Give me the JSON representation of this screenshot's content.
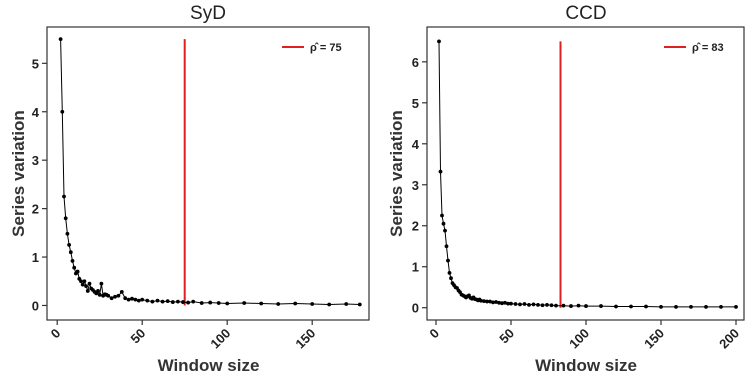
{
  "chart_data": [
    {
      "type": "line",
      "title": "SyD",
      "xlabel": "Window size",
      "ylabel": "Series variation",
      "xlim": [
        -6,
        184
      ],
      "ylim": [
        -0.3,
        5.75
      ],
      "xticks": [
        0,
        50,
        100,
        150
      ],
      "yticks": [
        0,
        1,
        2,
        3,
        4,
        5
      ],
      "grid": false,
      "legend_position": "top-right",
      "vline": {
        "x": 75,
        "ymin": 0,
        "ymax": 5.5,
        "color": "#e02020",
        "label": "ρ̂ = 75"
      },
      "series": [
        {
          "color": "#000000",
          "x": [
            2,
            3,
            4,
            5,
            6,
            7,
            8,
            9,
            10,
            11,
            12,
            13,
            14,
            15,
            16,
            17,
            18,
            19,
            20,
            21,
            22,
            23,
            24,
            25,
            26,
            27,
            28,
            29,
            30,
            32,
            34,
            36,
            38,
            40,
            42,
            44,
            46,
            48,
            50,
            53,
            56,
            59,
            62,
            65,
            68,
            71,
            74,
            77,
            80,
            85,
            90,
            95,
            100,
            110,
            120,
            130,
            140,
            150,
            160,
            170,
            178
          ],
          "y": [
            5.5,
            4.0,
            2.25,
            1.8,
            1.48,
            1.25,
            1.1,
            0.92,
            0.78,
            0.66,
            0.7,
            0.55,
            0.5,
            0.43,
            0.5,
            0.4,
            0.3,
            0.45,
            0.35,
            0.32,
            0.28,
            0.25,
            0.3,
            0.22,
            0.45,
            0.2,
            0.23,
            0.22,
            0.2,
            0.15,
            0.18,
            0.2,
            0.28,
            0.15,
            0.12,
            0.14,
            0.12,
            0.1,
            0.12,
            0.1,
            0.08,
            0.1,
            0.08,
            0.09,
            0.07,
            0.08,
            0.07,
            0.06,
            0.08,
            0.05,
            0.06,
            0.05,
            0.04,
            0.05,
            0.04,
            0.03,
            0.04,
            0.03,
            0.02,
            0.03,
            0.02
          ]
        }
      ]
    },
    {
      "type": "line",
      "title": "CCD",
      "xlabel": "Window size",
      "ylabel": "Series variation",
      "xlim": [
        -6,
        206
      ],
      "ylim": [
        -0.3,
        6.85
      ],
      "xticks": [
        0,
        50,
        100,
        150,
        200
      ],
      "yticks": [
        0,
        1,
        2,
        3,
        4,
        5,
        6
      ],
      "grid": false,
      "legend_position": "top-right",
      "vline": {
        "x": 83,
        "ymin": 0,
        "ymax": 6.5,
        "color": "#e02020",
        "label": "ρ̂ = 83"
      },
      "series": [
        {
          "color": "#000000",
          "x": [
            2,
            3,
            4,
            5,
            6,
            7,
            8,
            9,
            10,
            11,
            12,
            13,
            14,
            15,
            16,
            17,
            18,
            19,
            20,
            21,
            22,
            23,
            24,
            25,
            26,
            27,
            28,
            29,
            30,
            32,
            34,
            36,
            38,
            40,
            42,
            44,
            46,
            48,
            50,
            53,
            56,
            59,
            62,
            65,
            68,
            71,
            74,
            77,
            80,
            85,
            90,
            95,
            100,
            110,
            120,
            130,
            140,
            150,
            160,
            170,
            180,
            190,
            200
          ],
          "y": [
            6.5,
            3.32,
            2.25,
            2.05,
            1.88,
            1.5,
            1.15,
            0.85,
            0.72,
            0.6,
            0.55,
            0.5,
            0.48,
            0.42,
            0.38,
            0.32,
            0.3,
            0.28,
            0.25,
            0.28,
            0.3,
            0.24,
            0.22,
            0.25,
            0.21,
            0.2,
            0.18,
            0.2,
            0.17,
            0.16,
            0.15,
            0.15,
            0.13,
            0.14,
            0.12,
            0.11,
            0.12,
            0.1,
            0.1,
            0.09,
            0.08,
            0.09,
            0.07,
            0.08,
            0.07,
            0.06,
            0.07,
            0.06,
            0.05,
            0.05,
            0.04,
            0.05,
            0.04,
            0.04,
            0.03,
            0.03,
            0.03,
            0.02,
            0.02,
            0.02,
            0.02,
            0.02,
            0.02
          ]
        }
      ]
    }
  ]
}
